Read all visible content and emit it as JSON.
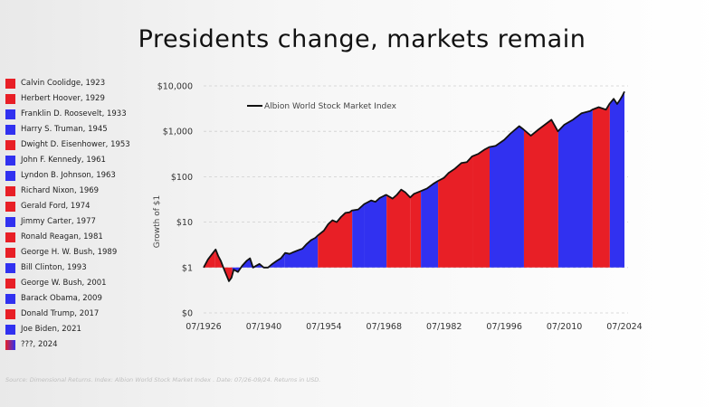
{
  "title": "Presidents change, markets remain",
  "source": "Source: Dimensional Returns. Index: Albion World Stock Market Index . Date: 07/26-09/24. Returns in USD.",
  "colors": {
    "republican": "#e81f26",
    "democrat": "#3131f0",
    "line": "#111111",
    "grid": "#cfcfcf"
  },
  "legend": [
    {
      "label": "Calvin Coolidge, 1923",
      "color": "#e81f26"
    },
    {
      "label": "Herbert Hoover, 1929",
      "color": "#e81f26"
    },
    {
      "label": "Franklin D. Roosevelt, 1933",
      "color": "#3131f0"
    },
    {
      "label": "Harry S. Truman, 1945",
      "color": "#3131f0"
    },
    {
      "label": "Dwight D. Eisenhower, 1953",
      "color": "#e81f26"
    },
    {
      "label": "John F. Kennedy, 1961",
      "color": "#3131f0"
    },
    {
      "label": "Lyndon B. Johnson, 1963",
      "color": "#3131f0"
    },
    {
      "label": "Richard Nixon, 1969",
      "color": "#e81f26"
    },
    {
      "label": "Gerald Ford, 1974",
      "color": "#e81f26"
    },
    {
      "label": "Jimmy Carter, 1977",
      "color": "#3131f0"
    },
    {
      "label": "Ronald Reagan, 1981",
      "color": "#e81f26"
    },
    {
      "label": "George H. W. Bush, 1989",
      "color": "#e81f26"
    },
    {
      "label": "Bill Clinton, 1993",
      "color": "#3131f0"
    },
    {
      "label": "George W. Bush, 2001",
      "color": "#e81f26"
    },
    {
      "label": "Barack Obama, 2009",
      "color": "#3131f0"
    },
    {
      "label": "Donald Trump, 2017",
      "color": "#e81f26"
    },
    {
      "label": "Joe Biden, 2021",
      "color": "#3131f0"
    },
    {
      "label": "???, 2024",
      "color": "mixed"
    }
  ],
  "chart_data": {
    "type": "area",
    "title": "Presidents change, markets remain",
    "ylabel": "Growth of $1",
    "xlabel": "",
    "y_scale": "log",
    "ylim": [
      0.1,
      10000
    ],
    "y_ticks": [
      {
        "value": 10000,
        "label": "$10,000"
      },
      {
        "value": 1000,
        "label": "$1,000"
      },
      {
        "value": 100,
        "label": "$100"
      },
      {
        "value": 10,
        "label": "$10"
      },
      {
        "value": 1,
        "label": "$1"
      },
      {
        "value": 0.1,
        "label": "$0"
      }
    ],
    "xlim": [
      1926.5,
      2024.5
    ],
    "x_ticks": [
      {
        "value": 1926.5,
        "label": "07/1926"
      },
      {
        "value": 1940.5,
        "label": "07/1940"
      },
      {
        "value": 1954.5,
        "label": "07/1954"
      },
      {
        "value": 1968.5,
        "label": "07/1968"
      },
      {
        "value": 1982.5,
        "label": "07/1982"
      },
      {
        "value": 1996.5,
        "label": "07/1996"
      },
      {
        "value": 2010.5,
        "label": "07/2010"
      },
      {
        "value": 2024.5,
        "label": "07/2024"
      }
    ],
    "grid": "horizontal dashed",
    "series": [
      {
        "name": "Albion World Stock Market Index",
        "points": [
          [
            1926.5,
            1.0
          ],
          [
            1927.5,
            1.5
          ],
          [
            1928.5,
            2.0
          ],
          [
            1929.3,
            2.5
          ],
          [
            1929.9,
            1.8
          ],
          [
            1930.5,
            1.4
          ],
          [
            1931.5,
            0.8
          ],
          [
            1932.4,
            0.5
          ],
          [
            1933.0,
            0.6
          ],
          [
            1933.5,
            0.9
          ],
          [
            1934.5,
            0.8
          ],
          [
            1935.5,
            1.1
          ],
          [
            1936.5,
            1.4
          ],
          [
            1937.3,
            1.6
          ],
          [
            1938.0,
            1.0
          ],
          [
            1939.5,
            1.2
          ],
          [
            1940.5,
            1.0
          ],
          [
            1941.5,
            1.0
          ],
          [
            1942.5,
            1.2
          ],
          [
            1943.5,
            1.4
          ],
          [
            1944.5,
            1.6
          ],
          [
            1945.5,
            2.1
          ],
          [
            1946.5,
            2.0
          ],
          [
            1947.5,
            2.2
          ],
          [
            1948.5,
            2.4
          ],
          [
            1949.5,
            2.6
          ],
          [
            1950.5,
            3.3
          ],
          [
            1951.5,
            4.0
          ],
          [
            1952.5,
            4.5
          ],
          [
            1953.0,
            5.0
          ],
          [
            1954.5,
            6.5
          ],
          [
            1955.5,
            9.0
          ],
          [
            1956.5,
            11.0
          ],
          [
            1957.5,
            10.0
          ],
          [
            1958.5,
            13.0
          ],
          [
            1959.5,
            16.0
          ],
          [
            1960.5,
            16.5
          ],
          [
            1961.0,
            18.0
          ],
          [
            1962.5,
            19.0
          ],
          [
            1963.9,
            25.0
          ],
          [
            1965.5,
            30.0
          ],
          [
            1966.5,
            28.0
          ],
          [
            1967.5,
            34.0
          ],
          [
            1968.5,
            38.0
          ],
          [
            1969.0,
            40.0
          ],
          [
            1970.5,
            33.0
          ],
          [
            1971.5,
            40.0
          ],
          [
            1972.5,
            52.0
          ],
          [
            1973.5,
            45.0
          ],
          [
            1974.6,
            35.0
          ],
          [
            1975.5,
            42.0
          ],
          [
            1977.0,
            48.0
          ],
          [
            1978.5,
            55.0
          ],
          [
            1980.0,
            70.0
          ],
          [
            1981.0,
            80.0
          ],
          [
            1982.5,
            95.0
          ],
          [
            1983.5,
            120.0
          ],
          [
            1985.0,
            150.0
          ],
          [
            1986.5,
            200.0
          ],
          [
            1987.8,
            210.0
          ],
          [
            1989.0,
            280.0
          ],
          [
            1990.5,
            320.0
          ],
          [
            1992.0,
            400.0
          ],
          [
            1993.0,
            450.0
          ],
          [
            1994.5,
            480.0
          ],
          [
            1996.5,
            650.0
          ],
          [
            1998.0,
            900.0
          ],
          [
            2000.0,
            1300.0
          ],
          [
            2001.0,
            1100.0
          ],
          [
            2002.7,
            800.0
          ],
          [
            2004.5,
            1100.0
          ],
          [
            2007.5,
            1800.0
          ],
          [
            2009.0,
            1000.0
          ],
          [
            2010.5,
            1400.0
          ],
          [
            2012.5,
            1800.0
          ],
          [
            2014.5,
            2500.0
          ],
          [
            2016.5,
            2800.0
          ],
          [
            2017.0,
            3000.0
          ],
          [
            2018.5,
            3400.0
          ],
          [
            2020.2,
            3000.0
          ],
          [
            2021.0,
            4000.0
          ],
          [
            2022.0,
            5200.0
          ],
          [
            2022.8,
            4000.0
          ],
          [
            2023.5,
            5000.0
          ],
          [
            2024.0,
            6000.0
          ],
          [
            2024.5,
            7500.0
          ]
        ]
      }
    ],
    "terms": [
      {
        "start": 1926.5,
        "end": 1929.2,
        "party": "R"
      },
      {
        "start": 1929.2,
        "end": 1933.2,
        "party": "R"
      },
      {
        "start": 1933.2,
        "end": 1945.3,
        "party": "D"
      },
      {
        "start": 1945.3,
        "end": 1953.1,
        "party": "D"
      },
      {
        "start": 1953.1,
        "end": 1961.1,
        "party": "R"
      },
      {
        "start": 1961.1,
        "end": 1963.9,
        "party": "D"
      },
      {
        "start": 1963.9,
        "end": 1969.1,
        "party": "D"
      },
      {
        "start": 1969.1,
        "end": 1974.6,
        "party": "R"
      },
      {
        "start": 1974.6,
        "end": 1977.1,
        "party": "R"
      },
      {
        "start": 1977.1,
        "end": 1981.1,
        "party": "D"
      },
      {
        "start": 1981.1,
        "end": 1989.1,
        "party": "R"
      },
      {
        "start": 1989.1,
        "end": 1993.1,
        "party": "R"
      },
      {
        "start": 1993.1,
        "end": 2001.1,
        "party": "D"
      },
      {
        "start": 2001.1,
        "end": 2009.1,
        "party": "R"
      },
      {
        "start": 2009.1,
        "end": 2017.1,
        "party": "D"
      },
      {
        "start": 2017.1,
        "end": 2021.1,
        "party": "R"
      },
      {
        "start": 2021.1,
        "end": 2024.5,
        "party": "D"
      }
    ]
  }
}
